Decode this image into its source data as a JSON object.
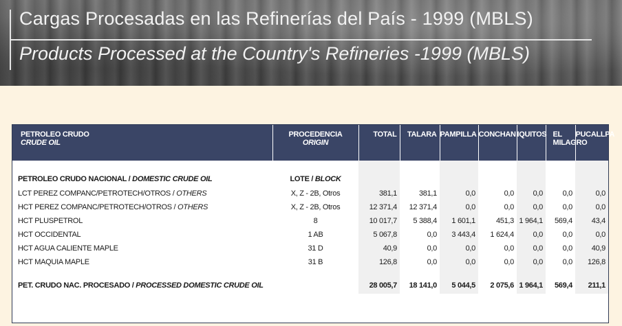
{
  "banner": {
    "title_es": "Cargas Procesadas en las Refinerías del País - 1999 (MBLS)",
    "title_en": "Products Processed at the Country's Refineries -1999 (MBLS)"
  },
  "table": {
    "headers": {
      "crude_es": "PETROLEO CRUDO",
      "crude_en": "CRUDE OIL",
      "origin_es": "PROCEDENCIA",
      "origin_en": "ORIGIN",
      "total": "TOTAL",
      "talara": "TALARA",
      "pampilla": "PAMPILLA",
      "conchan": "CONCHAN",
      "iquitos": "IQUITOS",
      "milagro_1": "EL",
      "milagro_2": "MILAGRO",
      "pucallpa": "PUCALLPA"
    },
    "section": {
      "label_es": "PETROLEO CRUDO NACIONAL / ",
      "label_en": "DOMESTIC CRUDE OIL",
      "origin_es": "LOTE / ",
      "origin_en": "BLOCK"
    },
    "rows": [
      {
        "name_es": "LCT PEREZ COMPANC/PETROTECH/OTROS / ",
        "name_en": "OTHERS",
        "origin": "X, Z - 2B, Otros",
        "total": "381,1",
        "talara": "381,1",
        "pampilla": "0,0",
        "conchan": "0,0",
        "iquitos": "0,0",
        "milagro": "0,0",
        "pucallpa": "0,0"
      },
      {
        "name_es": "HCT PEREZ COMPANC/PETROTECH/OTROS / ",
        "name_en": "OTHERS",
        "origin": "X, Z - 2B, Otros",
        "total": "12 371,4",
        "talara": "12 371,4",
        "pampilla": "0,0",
        "conchan": "0,0",
        "iquitos": "0,0",
        "milagro": "0,0",
        "pucallpa": "0,0"
      },
      {
        "name_es": "HCT PLUSPETROL",
        "name_en": "",
        "origin": "8",
        "total": "10 017,7",
        "talara": "5 388,4",
        "pampilla": "1 601,1",
        "conchan": "451,3",
        "iquitos": "1 964,1",
        "milagro": "569,4",
        "pucallpa": "43,4"
      },
      {
        "name_es": "HCT OCCIDENTAL",
        "name_en": "",
        "origin": "1 AB",
        "total": "5 067,8",
        "talara": "0,0",
        "pampilla": "3 443,4",
        "conchan": "1 624,4",
        "iquitos": "0,0",
        "milagro": "0,0",
        "pucallpa": "0,0"
      },
      {
        "name_es": "HCT AGUA CALIENTE MAPLE",
        "name_en": "",
        "origin": "31 D",
        "total": "40,9",
        "talara": "0,0",
        "pampilla": "0,0",
        "conchan": "0,0",
        "iquitos": "0,0",
        "milagro": "0,0",
        "pucallpa": "40,9"
      },
      {
        "name_es": "HCT MAQUIA MAPLE",
        "name_en": "",
        "origin": "31 B",
        "total": "126,8",
        "talara": "0,0",
        "pampilla": "0,0",
        "conchan": "0,0",
        "iquitos": "0,0",
        "milagro": "0,0",
        "pucallpa": "126,8"
      }
    ],
    "total_row": {
      "label_es": "PET. CRUDO NAC. PROCESADO / ",
      "label_en": "PROCESSED DOMESTIC CRUDE OIL",
      "total": "28 005,7",
      "talara": "18 141,0",
      "pampilla": "5 044,5",
      "conchan": "2 075,6",
      "iquitos": "1 964,1",
      "milagro": "569,4",
      "pucallpa": "211,1"
    }
  }
}
